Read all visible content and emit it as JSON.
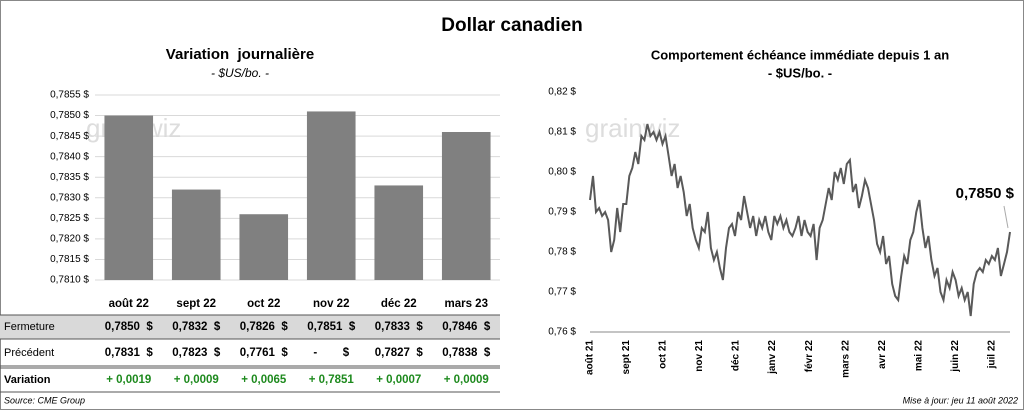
{
  "title": "Dollar canadien",
  "chart_data": [
    {
      "type": "bar",
      "title": "Variation  journalière",
      "subtitle": "- $US/bo. -",
      "watermark": "grainwiz",
      "categories": [
        "août 22",
        "sept 22",
        "oct 22",
        "nov 22",
        "déc 22",
        "mars 23"
      ],
      "values": [
        0.785,
        0.7832,
        0.7826,
        0.7851,
        0.7833,
        0.7846
      ],
      "color": "#808080",
      "ylim": [
        0.781,
        0.7855
      ],
      "yticks": [
        {
          "value": 0.781,
          "label": "0,7810 $"
        },
        {
          "value": 0.7815,
          "label": "0,7815 $"
        },
        {
          "value": 0.782,
          "label": "0,7820 $"
        },
        {
          "value": 0.7825,
          "label": "0,7825 $"
        },
        {
          "value": 0.783,
          "label": "0,7830 $"
        },
        {
          "value": 0.7835,
          "label": "0,7835 $"
        },
        {
          "value": 0.784,
          "label": "0,7840 $"
        },
        {
          "value": 0.7845,
          "label": "0,7845 $"
        },
        {
          "value": 0.785,
          "label": "0,7850 $"
        },
        {
          "value": 0.7855,
          "label": "0,7855 $"
        }
      ],
      "grid": true
    },
    {
      "type": "line",
      "title": "Comportement échéance immédiate depuis 1 an",
      "subtitle": "- $US/bo. -",
      "watermark": "grainwiz",
      "x_labels": [
        "août 21",
        "sept 21",
        "oct 21",
        "nov 21",
        "déc 21",
        "janv 22",
        "févr 22",
        "mars 22",
        "avr 22",
        "mai 22",
        "juin 22",
        "juil 22"
      ],
      "color": "#595959",
      "values": [
        0.793,
        0.799,
        0.79,
        0.791,
        0.789,
        0.79,
        0.788,
        0.78,
        0.783,
        0.791,
        0.785,
        0.792,
        0.792,
        0.799,
        0.801,
        0.805,
        0.802,
        0.809,
        0.808,
        0.812,
        0.809,
        0.81,
        0.808,
        0.81,
        0.807,
        0.809,
        0.804,
        0.799,
        0.802,
        0.796,
        0.799,
        0.795,
        0.789,
        0.792,
        0.786,
        0.783,
        0.781,
        0.786,
        0.785,
        0.79,
        0.781,
        0.778,
        0.78,
        0.776,
        0.773,
        0.781,
        0.786,
        0.787,
        0.784,
        0.79,
        0.788,
        0.794,
        0.79,
        0.786,
        0.789,
        0.784,
        0.788,
        0.786,
        0.789,
        0.785,
        0.783,
        0.789,
        0.787,
        0.789,
        0.786,
        0.788,
        0.785,
        0.784,
        0.786,
        0.789,
        0.784,
        0.788,
        0.785,
        0.784,
        0.787,
        0.778,
        0.786,
        0.788,
        0.792,
        0.796,
        0.793,
        0.8,
        0.798,
        0.801,
        0.797,
        0.802,
        0.803,
        0.795,
        0.797,
        0.791,
        0.794,
        0.798,
        0.796,
        0.792,
        0.788,
        0.782,
        0.78,
        0.784,
        0.777,
        0.779,
        0.772,
        0.769,
        0.768,
        0.774,
        0.779,
        0.777,
        0.783,
        0.785,
        0.79,
        0.793,
        0.786,
        0.781,
        0.784,
        0.778,
        0.774,
        0.776,
        0.77,
        0.768,
        0.773,
        0.771,
        0.775,
        0.773,
        0.769,
        0.771,
        0.768,
        0.77,
        0.764,
        0.772,
        0.775,
        0.776,
        0.775,
        0.778,
        0.777,
        0.779,
        0.778,
        0.781,
        0.774,
        0.777,
        0.78,
        0.785
      ],
      "ylim": [
        0.76,
        0.82
      ],
      "yticks": [
        {
          "value": 0.76,
          "label": "0,76 $"
        },
        {
          "value": 0.77,
          "label": "0,77 $"
        },
        {
          "value": 0.78,
          "label": "0,78 $"
        },
        {
          "value": 0.79,
          "label": "0,79 $"
        },
        {
          "value": 0.8,
          "label": "0,80 $"
        },
        {
          "value": 0.81,
          "label": "0,81 $"
        },
        {
          "value": 0.82,
          "label": "0,82 $"
        }
      ],
      "annotation": "0,7850 $"
    }
  ],
  "table": {
    "rows": [
      {
        "label": "Fermeture",
        "cells": [
          "0,7850  $",
          "0,7832  $",
          "0,7826  $",
          "0,7851  $",
          "0,7833  $",
          "0,7846  $"
        ]
      },
      {
        "label": "Précédent",
        "cells": [
          "0,7831  $",
          "0,7823  $",
          "0,7761  $",
          "-        $",
          "0,7827  $",
          "0,7838  $"
        ]
      },
      {
        "label": "Variation",
        "cells": [
          "+ 0,0019",
          "+ 0,0009",
          "+ 0,0065",
          "+ 0,7851",
          "+ 0,0007",
          "+ 0,0009"
        ]
      }
    ]
  },
  "source": "Source: CME Group",
  "updated": "Mise à jour: jeu 11 août 2022"
}
